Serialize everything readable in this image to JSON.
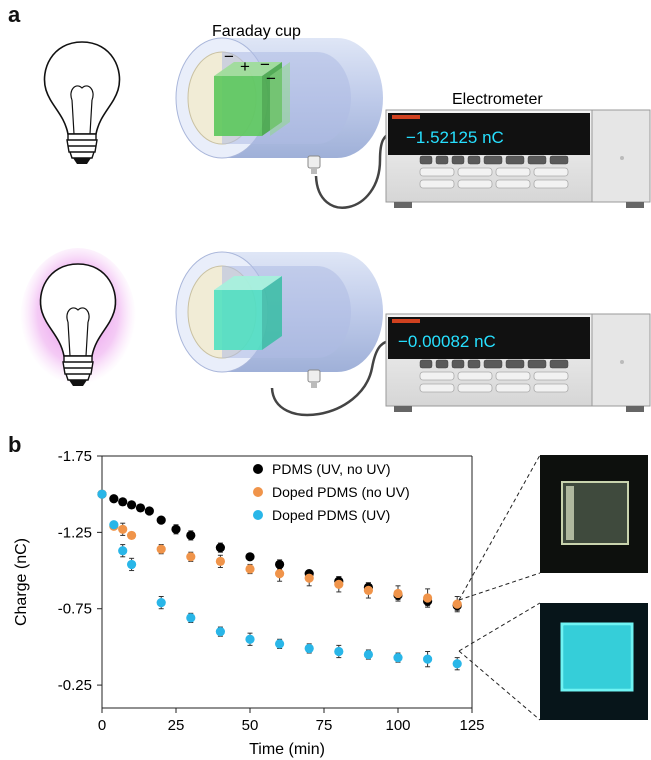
{
  "panel_a": {
    "letter": "a",
    "faraday_label": "Faraday cup",
    "electrometer_label": "Electrometer",
    "reading_top": "−1.52125 nC",
    "reading_bottom": "−0.00082 nC",
    "top_cube_signs": [
      "−",
      "+",
      "−",
      "−"
    ],
    "colors": {
      "reading_text": "#27e0ff",
      "charged_cube": "#5cc85c",
      "uv_cube": "#49e0c0",
      "uv_glow": "#d46ad8"
    }
  },
  "panel_b": {
    "letter": "b",
    "colors": {
      "pdms": "#000000",
      "doped_no_uv": "#f0944a",
      "doped_uv": "#29b6e8"
    }
  },
  "chart_data": {
    "type": "scatter",
    "xlabel": "Time (min)",
    "ylabel": "Charge (nC)",
    "xlim": [
      0,
      125
    ],
    "ylim": [
      -0.1,
      -1.75
    ],
    "y_reversed": true,
    "xticks": [
      0,
      25,
      50,
      75,
      100,
      125
    ],
    "yticks": [
      -1.75,
      -1.25,
      -0.75,
      -0.25
    ],
    "ytick_labels": [
      "-1.75",
      "-1.25",
      "-0.75",
      "-0.25"
    ],
    "grid": false,
    "legend_position": "top-right",
    "series": [
      {
        "name": "PDMS (UV, no UV)",
        "color": "#000000",
        "x": [
          0,
          4,
          7,
          10,
          13,
          16,
          20,
          25,
          30,
          40,
          50,
          60,
          70,
          80,
          90,
          100,
          110,
          120
        ],
        "y": [
          -1.5,
          -1.47,
          -1.45,
          -1.43,
          -1.41,
          -1.39,
          -1.33,
          -1.27,
          -1.23,
          -1.15,
          -1.09,
          -1.04,
          -0.98,
          -0.93,
          -0.89,
          -0.84,
          -0.8,
          -0.77
        ],
        "err": [
          0.01,
          0.01,
          0.01,
          0.01,
          0.01,
          0.01,
          0.02,
          0.03,
          0.03,
          0.03,
          0.02,
          0.03,
          0.02,
          0.03,
          0.03,
          0.03,
          0.03,
          0.03
        ]
      },
      {
        "name": "Doped PDMS (no UV)",
        "color": "#f0944a",
        "x": [
          0,
          4,
          7,
          10,
          20,
          30,
          40,
          50,
          60,
          70,
          80,
          90,
          100,
          110,
          120
        ],
        "y": [
          -1.5,
          -1.29,
          -1.27,
          -1.23,
          -1.14,
          -1.09,
          -1.06,
          -1.01,
          -0.98,
          -0.95,
          -0.91,
          -0.87,
          -0.85,
          -0.82,
          -0.78
        ],
        "err": [
          0.01,
          0.02,
          0.04,
          0.02,
          0.03,
          0.03,
          0.04,
          0.03,
          0.05,
          0.05,
          0.05,
          0.05,
          0.05,
          0.06,
          0.05
        ]
      },
      {
        "name": "Doped PDMS (UV)",
        "color": "#29b6e8",
        "x": [
          0,
          4,
          7,
          10,
          20,
          30,
          40,
          50,
          60,
          70,
          80,
          90,
          100,
          110,
          120
        ],
        "y": [
          -1.5,
          -1.3,
          -1.13,
          -1.04,
          -0.79,
          -0.69,
          -0.6,
          -0.55,
          -0.52,
          -0.49,
          -0.47,
          -0.45,
          -0.43,
          -0.42,
          -0.39
        ],
        "err": [
          0.01,
          0.02,
          0.04,
          0.04,
          0.04,
          0.03,
          0.03,
          0.04,
          0.03,
          0.03,
          0.04,
          0.03,
          0.03,
          0.05,
          0.04
        ]
      }
    ]
  }
}
